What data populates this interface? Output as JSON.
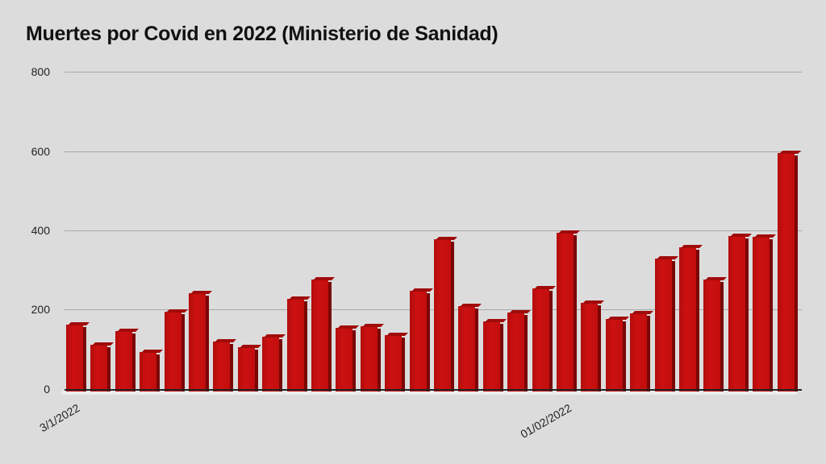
{
  "chart": {
    "title": "Muertes por Covid en 2022 (Ministerio de Sanidad)",
    "y_ticks": [
      "800",
      "600",
      "400",
      "200",
      "0"
    ],
    "x_labels": [
      {
        "label": "3/1/2022",
        "bar_index": 0
      },
      {
        "label": "01/02/2022",
        "bar_index": 20
      }
    ],
    "bar_color": "#c20e0e",
    "background_color": "#dcdcdc"
  },
  "chart_data": {
    "type": "bar",
    "title": "Muertes por Covid en 2022 (Ministerio de Sanidad)",
    "xlabel": "",
    "ylabel": "",
    "ylim": [
      0,
      800
    ],
    "yticks": [
      0,
      200,
      400,
      600,
      800
    ],
    "grid": true,
    "legend": null,
    "x_tick_labels": {
      "0": "3/1/2022",
      "20": "01/02/2022"
    },
    "categories": [
      "3/1/2022",
      "",
      "",
      "",
      "",
      "",
      "",
      "",
      "",
      "",
      "",
      "",
      "",
      "",
      "",
      "",
      "",
      "",
      "",
      "",
      "01/02/2022",
      "",
      "",
      "",
      "",
      "",
      "",
      "",
      "",
      ""
    ],
    "values": [
      162,
      112,
      146,
      93,
      195,
      242,
      120,
      106,
      132,
      227,
      276,
      154,
      158,
      136,
      248,
      378,
      209,
      171,
      193,
      254,
      394,
      217,
      177,
      191,
      329,
      357,
      276,
      386,
      384,
      595
    ],
    "colors": {
      "bars": "#c20e0e",
      "background": "#dcdcdc",
      "gridlines": "#a8a8a8"
    }
  }
}
